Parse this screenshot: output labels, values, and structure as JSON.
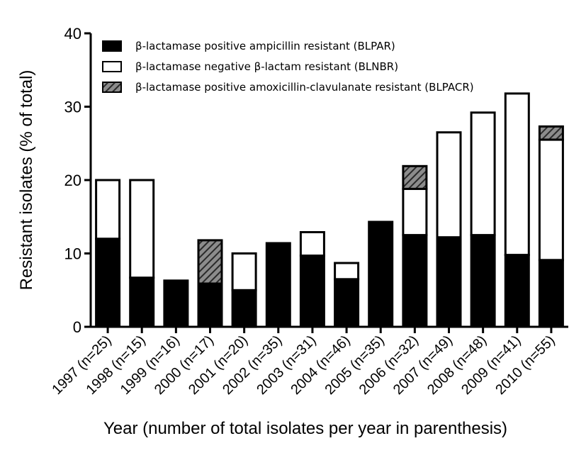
{
  "chart_data": {
    "type": "bar",
    "stacked": true,
    "title": "",
    "xlabel": "Year (number of total isolates per year in parenthesis)",
    "ylabel": "Resistant isolates (% of total)",
    "ylim": [
      0,
      40
    ],
    "yticks": [
      0,
      10,
      20,
      30,
      40
    ],
    "grid": false,
    "legend_position": "top-left",
    "categories": [
      "1997 (n=25)",
      "1998 (n=15)",
      "1999 (n=16)",
      "2000 (n=17)",
      "2001 (n=20)",
      "2002 (n=35)",
      "2003 (n=31)",
      "2004 (n=46)",
      "2005 (n=35)",
      "2006 (n=32)",
      "2007 (n=49)",
      "2008 (n=48)",
      "2009 (n=41)",
      "2010 (n=55)"
    ],
    "series": [
      {
        "name": "β-lactamase positive ampicillin resistant (BLPAR)",
        "fill": "solid",
        "color": "#000000",
        "values": [
          12.0,
          6.7,
          6.3,
          5.9,
          5.0,
          11.4,
          9.7,
          6.5,
          14.3,
          12.5,
          12.2,
          12.5,
          9.8,
          9.1
        ]
      },
      {
        "name": "β-lactamase negative β-lactam resistant (BLNBR)",
        "fill": "open",
        "color": "#ffffff",
        "values": [
          8.0,
          13.3,
          0,
          0,
          5.0,
          0,
          3.2,
          2.2,
          0,
          6.3,
          14.3,
          16.7,
          22.0,
          16.4
        ]
      },
      {
        "name": "β-lactamase positive amoxicillin-clavulanate resistant (BLPACR)",
        "fill": "hatched",
        "color": "#555555",
        "values": [
          0,
          0,
          0,
          5.9,
          0,
          0,
          0,
          0,
          0,
          3.1,
          0,
          0,
          0,
          1.8
        ]
      }
    ]
  }
}
